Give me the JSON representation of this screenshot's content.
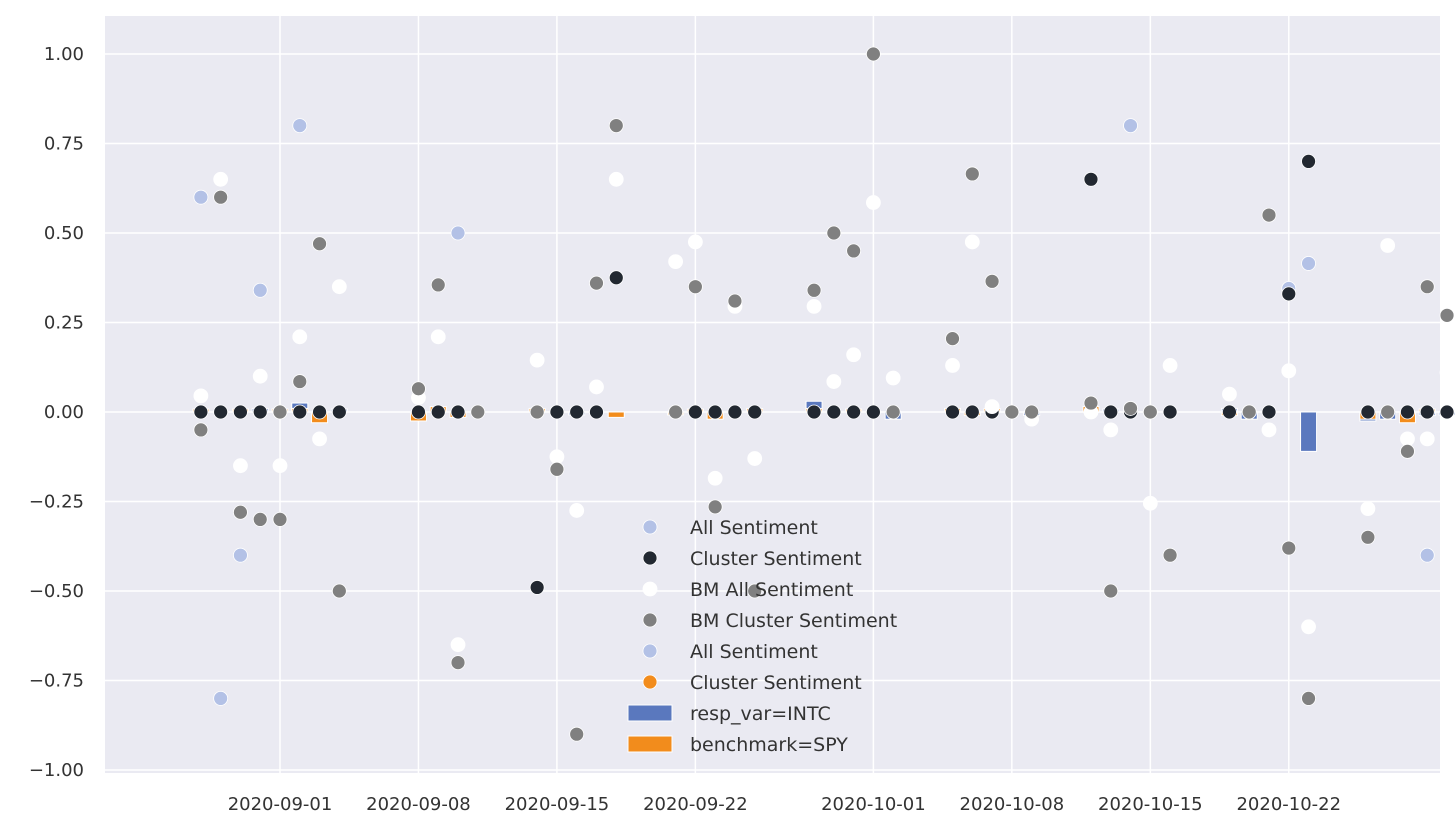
{
  "chart_data": {
    "type": "scatter",
    "title": "",
    "xlabel": "",
    "ylabel": "",
    "ylim": [
      -1.0,
      1.1
    ],
    "xlim": [
      "2020-08-27",
      "2020-10-30"
    ],
    "grid": true,
    "legend_placement": "bottom-center",
    "y_ticks": [
      "1.00",
      "0.75",
      "0.50",
      "0.25",
      "0.00",
      "−0.25",
      "−0.50",
      "−0.75",
      "−1.00"
    ],
    "y_tick_values": [
      1.0,
      0.75,
      0.5,
      0.25,
      0.0,
      -0.25,
      -0.5,
      -0.75,
      -1.0
    ],
    "x_ticks": [
      "2020-09-01",
      "2020-09-08",
      "2020-09-15",
      "2020-09-22",
      "2020-10-01",
      "2020-10-08",
      "2020-10-15",
      "2020-10-22"
    ],
    "x_tick_values": [
      "2020-09-01",
      "2020-09-08",
      "2020-09-15",
      "2020-09-22",
      "2020-10-01",
      "2020-10-08",
      "2020-10-15",
      "2020-10-22"
    ],
    "colors": {
      "background": "#eaeaf2",
      "grid": "#ffffff",
      "all_sentiment": "#b3c1e6",
      "cluster_sentiment": "#222831",
      "bm_all_sentiment": "#ffffff",
      "bm_cluster_sentiment": "#808080",
      "cluster_sentiment_orange": "#f28c1c",
      "resp_var": "#5a78be",
      "benchmark": "#f28c1c"
    },
    "legend": [
      {
        "label": "All Sentiment",
        "marker": "dot",
        "color": "#b3c1e6"
      },
      {
        "label": "Cluster Sentiment",
        "marker": "dot",
        "color": "#222831"
      },
      {
        "label": "BM All Sentiment",
        "marker": "dot",
        "color": "#ffffff"
      },
      {
        "label": "BM Cluster Sentiment",
        "marker": "dot",
        "color": "#808080"
      },
      {
        "label": "All Sentiment",
        "marker": "dot",
        "color": "#b3c1e6"
      },
      {
        "label": "Cluster Sentiment",
        "marker": "dot",
        "color": "#f28c1c"
      },
      {
        "label": "resp_var=INTC",
        "marker": "bar",
        "color": "#5a78be"
      },
      {
        "label": "benchmark=SPY",
        "marker": "bar",
        "color": "#f28c1c"
      }
    ],
    "series": [
      {
        "name": "All Sentiment",
        "kind": "scatter",
        "color": "#b3c1e6",
        "points": [
          [
            "2020-08-28",
            0.6
          ],
          [
            "2020-08-29",
            -0.8
          ],
          [
            "2020-08-30",
            -0.4
          ],
          [
            "2020-08-31",
            0.34
          ],
          [
            "2020-09-02",
            0.8
          ],
          [
            "2020-09-10",
            0.5
          ],
          [
            "2020-10-14",
            0.8
          ],
          [
            "2020-10-22",
            0.345
          ],
          [
            "2020-10-23",
            0.415
          ],
          [
            "2020-10-29",
            -0.4
          ]
        ]
      },
      {
        "name": "Cluster Sentiment",
        "kind": "scatter",
        "color": "#222831",
        "points": [
          [
            "2020-08-28",
            0
          ],
          [
            "2020-08-29",
            0
          ],
          [
            "2020-08-30",
            0
          ],
          [
            "2020-08-31",
            0
          ],
          [
            "2020-09-01",
            0
          ],
          [
            "2020-09-02",
            0
          ],
          [
            "2020-09-03",
            0
          ],
          [
            "2020-09-04",
            0
          ],
          [
            "2020-09-08",
            0
          ],
          [
            "2020-09-09",
            0
          ],
          [
            "2020-09-10",
            0
          ],
          [
            "2020-09-14",
            -0.49
          ],
          [
            "2020-09-15",
            0
          ],
          [
            "2020-09-16",
            0
          ],
          [
            "2020-09-17",
            0
          ],
          [
            "2020-09-18",
            0.375
          ],
          [
            "2020-09-21",
            0
          ],
          [
            "2020-09-22",
            0
          ],
          [
            "2020-09-23",
            0
          ],
          [
            "2020-09-24",
            0
          ],
          [
            "2020-09-25",
            0
          ],
          [
            "2020-09-28",
            0
          ],
          [
            "2020-09-29",
            0
          ],
          [
            "2020-09-30",
            0
          ],
          [
            "2020-10-01",
            0
          ],
          [
            "2020-10-05",
            0
          ],
          [
            "2020-10-06",
            0
          ],
          [
            "2020-10-07",
            0
          ],
          [
            "2020-10-12",
            0.65
          ],
          [
            "2020-10-13",
            0
          ],
          [
            "2020-10-14",
            0
          ],
          [
            "2020-10-15",
            0
          ],
          [
            "2020-10-16",
            0
          ],
          [
            "2020-10-19",
            0
          ],
          [
            "2020-10-20",
            0
          ],
          [
            "2020-10-21",
            0
          ],
          [
            "2020-10-22",
            0.33
          ],
          [
            "2020-10-23",
            0.7
          ],
          [
            "2020-10-26",
            0
          ],
          [
            "2020-10-27",
            0
          ],
          [
            "2020-10-28",
            0
          ],
          [
            "2020-10-29",
            0
          ],
          [
            "2020-10-30",
            0
          ]
        ]
      },
      {
        "name": "BM All Sentiment",
        "kind": "scatter",
        "color": "#ffffff",
        "points": [
          [
            "2020-08-28",
            0.045
          ],
          [
            "2020-08-29",
            0.65
          ],
          [
            "2020-08-30",
            -0.15
          ],
          [
            "2020-08-31",
            0.1
          ],
          [
            "2020-09-01",
            -0.15
          ],
          [
            "2020-09-02",
            0.21
          ],
          [
            "2020-09-03",
            -0.075
          ],
          [
            "2020-09-04",
            0.35
          ],
          [
            "2020-09-08",
            0.04
          ],
          [
            "2020-09-09",
            0.21
          ],
          [
            "2020-09-10",
            -0.65
          ],
          [
            "2020-09-14",
            0.145
          ],
          [
            "2020-09-15",
            -0.125
          ],
          [
            "2020-09-16",
            -0.275
          ],
          [
            "2020-09-17",
            0.07
          ],
          [
            "2020-09-18",
            0.65
          ],
          [
            "2020-09-21",
            0.42
          ],
          [
            "2020-09-22",
            0.475
          ],
          [
            "2020-09-23",
            -0.185
          ],
          [
            "2020-09-24",
            0.295
          ],
          [
            "2020-09-25",
            -0.13
          ],
          [
            "2020-09-28",
            0.295
          ],
          [
            "2020-09-29",
            0.085
          ],
          [
            "2020-09-30",
            0.16
          ],
          [
            "2020-10-01",
            0.585
          ],
          [
            "2020-10-02",
            0.095
          ],
          [
            "2020-10-05",
            0.13
          ],
          [
            "2020-10-06",
            0.475
          ],
          [
            "2020-10-07",
            0.015
          ],
          [
            "2020-10-09",
            -0.02
          ],
          [
            "2020-10-12",
            0.0
          ],
          [
            "2020-10-13",
            -0.05
          ],
          [
            "2020-10-15",
            -0.255
          ],
          [
            "2020-10-16",
            0.13
          ],
          [
            "2020-10-19",
            0.05
          ],
          [
            "2020-10-21",
            -0.05
          ],
          [
            "2020-10-22",
            0.115
          ],
          [
            "2020-10-23",
            -0.6
          ],
          [
            "2020-10-26",
            -0.27
          ],
          [
            "2020-10-27",
            0.465
          ],
          [
            "2020-10-28",
            -0.075
          ],
          [
            "2020-10-29",
            -0.075
          ],
          [
            "2020-10-30",
            0.11
          ]
        ]
      },
      {
        "name": "BM Cluster Sentiment",
        "kind": "scatter",
        "color": "#808080",
        "points": [
          [
            "2020-08-28",
            -0.05
          ],
          [
            "2020-08-29",
            0.6
          ],
          [
            "2020-08-30",
            -0.28
          ],
          [
            "2020-08-31",
            -0.3
          ],
          [
            "2020-09-01",
            0.0
          ],
          [
            "2020-09-01",
            -0.3
          ],
          [
            "2020-09-02",
            0.085
          ],
          [
            "2020-09-03",
            0.47
          ],
          [
            "2020-09-04",
            -0.5
          ],
          [
            "2020-09-08",
            0.065
          ],
          [
            "2020-09-09",
            0.355
          ],
          [
            "2020-09-10",
            -0.7
          ],
          [
            "2020-09-11",
            0.0
          ],
          [
            "2020-09-14",
            0.0
          ],
          [
            "2020-09-15",
            -0.16
          ],
          [
            "2020-09-16",
            -0.9
          ],
          [
            "2020-09-17",
            0.36
          ],
          [
            "2020-09-18",
            0.8
          ],
          [
            "2020-09-21",
            0.0
          ],
          [
            "2020-09-22",
            0.35
          ],
          [
            "2020-09-23",
            -0.265
          ],
          [
            "2020-09-24",
            0.31
          ],
          [
            "2020-09-25",
            -0.5
          ],
          [
            "2020-09-28",
            0.34
          ],
          [
            "2020-09-29",
            0.5
          ],
          [
            "2020-09-30",
            0.45
          ],
          [
            "2020-10-01",
            1.0
          ],
          [
            "2020-10-02",
            0.0
          ],
          [
            "2020-10-05",
            0.205
          ],
          [
            "2020-10-06",
            0.665
          ],
          [
            "2020-10-07",
            0.365
          ],
          [
            "2020-10-08",
            0.0
          ],
          [
            "2020-10-09",
            0.0
          ],
          [
            "2020-10-12",
            0.025
          ],
          [
            "2020-10-13",
            -0.5
          ],
          [
            "2020-10-14",
            0.01
          ],
          [
            "2020-10-15",
            0.0
          ],
          [
            "2020-10-16",
            -0.4
          ],
          [
            "2020-10-20",
            0.0
          ],
          [
            "2020-10-21",
            0.55
          ],
          [
            "2020-10-22",
            -0.38
          ],
          [
            "2020-10-23",
            -0.8
          ],
          [
            "2020-10-26",
            -0.35
          ],
          [
            "2020-10-27",
            0.0
          ],
          [
            "2020-10-28",
            -0.11
          ],
          [
            "2020-10-29",
            0.35
          ],
          [
            "2020-10-30",
            0.27
          ]
        ]
      }
    ],
    "bars": [
      {
        "name": "resp_var=INTC",
        "color": "#5a78be",
        "points": [
          [
            "2020-08-31",
            0.01
          ],
          [
            "2020-09-01",
            0.005
          ],
          [
            "2020-09-02",
            0.025
          ],
          [
            "2020-09-04",
            0.005
          ],
          [
            "2020-09-10",
            -0.01
          ],
          [
            "2020-09-14",
            0.005
          ],
          [
            "2020-09-16",
            -0.005
          ],
          [
            "2020-09-28",
            0.03
          ],
          [
            "2020-10-02",
            -0.02
          ],
          [
            "2020-10-09",
            -0.01
          ],
          [
            "2020-10-13",
            0.005
          ],
          [
            "2020-10-19",
            0.01
          ],
          [
            "2020-10-20",
            -0.02
          ],
          [
            "2020-10-23",
            -0.11
          ],
          [
            "2020-10-26",
            -0.025
          ],
          [
            "2020-10-27",
            -0.02
          ],
          [
            "2020-10-29",
            -0.01
          ],
          [
            "2020-10-30",
            -0.005
          ]
        ]
      },
      {
        "name": "benchmark=SPY",
        "color": "#f28c1c",
        "points": [
          [
            "2020-08-28",
            0.005
          ],
          [
            "2020-08-30",
            0.005
          ],
          [
            "2020-09-01",
            0.005
          ],
          [
            "2020-09-02",
            0.01
          ],
          [
            "2020-09-03",
            -0.03
          ],
          [
            "2020-09-08",
            -0.025
          ],
          [
            "2020-09-09",
            0.015
          ],
          [
            "2020-09-10",
            -0.015
          ],
          [
            "2020-09-14",
            0.01
          ],
          [
            "2020-09-18",
            -0.015
          ],
          [
            "2020-09-21",
            -0.005
          ],
          [
            "2020-09-22",
            0.005
          ],
          [
            "2020-09-23",
            -0.02
          ],
          [
            "2020-09-25",
            0.01
          ],
          [
            "2020-09-28",
            0.01
          ],
          [
            "2020-09-30",
            0.005
          ],
          [
            "2020-10-05",
            0.01
          ],
          [
            "2020-10-06",
            -0.01
          ],
          [
            "2020-10-07",
            0.01
          ],
          [
            "2020-10-12",
            0.015
          ],
          [
            "2020-10-19",
            -0.01
          ],
          [
            "2020-10-26",
            -0.02
          ],
          [
            "2020-10-28",
            -0.03
          ],
          [
            "2020-10-29",
            0.005
          ]
        ]
      }
    ]
  }
}
